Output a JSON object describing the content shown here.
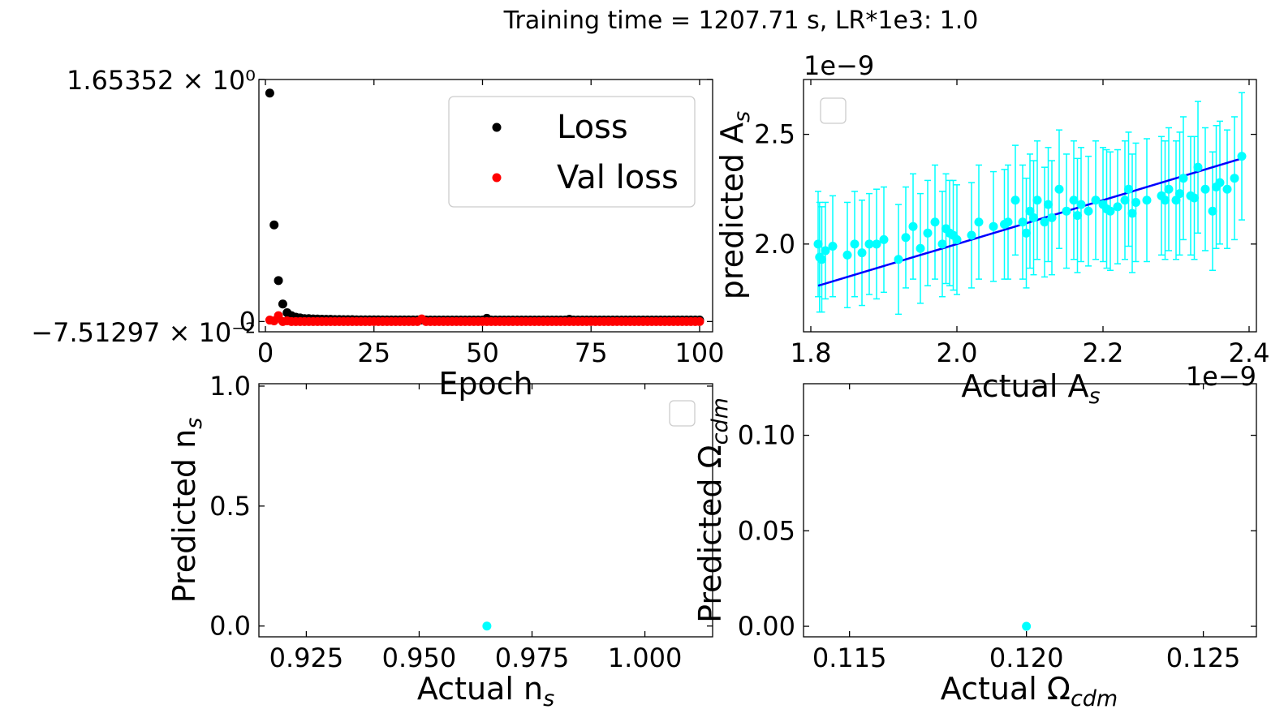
{
  "suptitle": "Training time = 1207.71 s,   LR*1e3:   1.0",
  "chart_data": [
    {
      "id": "loss",
      "type": "scatter",
      "xlabel": "Epoch",
      "ylabel": "",
      "xlim": [
        -1.5,
        103
      ],
      "ylim": [
        -0.07,
        1.653
      ],
      "xticks": [
        0,
        25,
        50,
        75,
        100
      ],
      "xtick_labels": [
        "0",
        "25",
        "50",
        "75",
        "100"
      ],
      "ytick_values": [
        1.65352,
        0
      ],
      "ytick_labels": [
        "1.65352 × 10⁰",
        "0"
      ],
      "ytick_extra_label": "−7.51297 × 10⁻²",
      "legend": "top-right",
      "series": [
        {
          "name": "Loss",
          "color": "#000000",
          "x": [
            1,
            2,
            3,
            4,
            5,
            6,
            7,
            8,
            9,
            10,
            11,
            12,
            13,
            14,
            15,
            16,
            17,
            18,
            19,
            20,
            21,
            22,
            23,
            24,
            25,
            26,
            27,
            28,
            29,
            30,
            31,
            32,
            33,
            34,
            35,
            36,
            37,
            38,
            39,
            40,
            41,
            42,
            43,
            44,
            45,
            46,
            47,
            48,
            49,
            50,
            51,
            52,
            53,
            54,
            55,
            56,
            57,
            58,
            59,
            60,
            61,
            62,
            63,
            64,
            65,
            66,
            67,
            68,
            69,
            70,
            71,
            72,
            73,
            74,
            75,
            76,
            77,
            78,
            79,
            80,
            81,
            82,
            83,
            84,
            85,
            86,
            87,
            88,
            89,
            90,
            91,
            92,
            93,
            94,
            95,
            96,
            97,
            98,
            99,
            100
          ],
          "y": [
            1.56,
            0.66,
            0.28,
            0.12,
            0.06,
            0.04,
            0.03,
            0.025,
            0.02,
            0.02,
            0.018,
            0.017,
            0.016,
            0.015,
            0.015,
            0.014,
            0.014,
            0.013,
            0.013,
            0.013,
            0.012,
            0.012,
            0.012,
            0.012,
            0.012,
            0.012,
            0.011,
            0.011,
            0.011,
            0.011,
            0.011,
            0.011,
            0.011,
            0.011,
            0.011,
            0.011,
            0.01,
            0.01,
            0.01,
            0.01,
            0.01,
            0.01,
            0.01,
            0.01,
            0.01,
            0.01,
            0.01,
            0.01,
            0.01,
            0.01,
            0.022,
            0.01,
            0.01,
            0.01,
            0.01,
            0.01,
            0.01,
            0.01,
            0.01,
            0.01,
            0.01,
            0.01,
            0.01,
            0.01,
            0.01,
            0.01,
            0.01,
            0.01,
            0.01,
            0.015,
            0.01,
            0.01,
            0.01,
            0.01,
            0.01,
            0.01,
            0.01,
            0.01,
            0.01,
            0.01,
            0.01,
            0.01,
            0.01,
            0.01,
            0.01,
            0.01,
            0.01,
            0.01,
            0.01,
            0.01,
            0.01,
            0.01,
            0.01,
            0.01,
            0.01,
            0.01,
            0.01,
            0.01,
            0.01,
            0.01
          ]
        },
        {
          "name": "Val loss",
          "color": "#ff0000",
          "x": [
            1,
            2,
            3,
            4,
            5,
            6,
            7,
            8,
            9,
            10,
            11,
            12,
            13,
            14,
            15,
            16,
            17,
            18,
            19,
            20,
            21,
            22,
            23,
            24,
            25,
            26,
            27,
            28,
            29,
            30,
            31,
            32,
            33,
            34,
            35,
            36,
            37,
            38,
            39,
            40,
            41,
            42,
            43,
            44,
            45,
            46,
            47,
            48,
            49,
            50,
            51,
            52,
            53,
            54,
            55,
            56,
            57,
            58,
            59,
            60,
            61,
            62,
            63,
            64,
            65,
            66,
            67,
            68,
            69,
            70,
            71,
            72,
            73,
            74,
            75,
            76,
            77,
            78,
            79,
            80,
            81,
            82,
            83,
            84,
            85,
            86,
            87,
            88,
            89,
            90,
            91,
            92,
            93,
            94,
            95,
            96,
            97,
            98,
            99,
            100
          ],
          "y": [
            0.01,
            0.005,
            0.04,
            0.0,
            0.005,
            0.0,
            0.0,
            0.0,
            0.0,
            0.0,
            0.0,
            0.0,
            0.0,
            0.0,
            0.0,
            0.0,
            0.0,
            0.0,
            0.0,
            0.0,
            0.0,
            0.0,
            0.0,
            0.0,
            0.0,
            0.0,
            0.0,
            0.0,
            0.0,
            0.0,
            0.0,
            0.0,
            0.0,
            0.0,
            0.0,
            0.018,
            0.0,
            0.0,
            0.0,
            0.0,
            0.0,
            0.0,
            0.0,
            0.0,
            0.0,
            0.0,
            0.0,
            0.0,
            0.0,
            0.0,
            0.0,
            0.0,
            0.0,
            0.0,
            0.0,
            0.0,
            0.0,
            0.0,
            0.0,
            0.0,
            0.0,
            0.0,
            0.0,
            0.0,
            0.0,
            0.0,
            0.0,
            0.0,
            0.0,
            0.0,
            0.0,
            0.0,
            0.0,
            0.0,
            0.0,
            0.0,
            0.0,
            0.0,
            0.0,
            0.0,
            0.0,
            0.0,
            0.0,
            0.0,
            0.0,
            0.0,
            0.0,
            0.0,
            0.0,
            0.0,
            0.0,
            0.0,
            0.0,
            0.0,
            0.0,
            0.0,
            0.0,
            0.0,
            0.0,
            0.0
          ]
        }
      ]
    },
    {
      "id": "As",
      "type": "scatter",
      "xlabel": "Actual A",
      "xlabel_sub": "s",
      "ylabel": "predicted A",
      "ylabel_sub": "s",
      "x_offset_label": "1e−9",
      "y_offset_label": "1e−9",
      "xlim": [
        1.79,
        2.41
      ],
      "ylim": [
        1.6,
        2.75
      ],
      "xticks": [
        1.8,
        2.0,
        2.2,
        2.4
      ],
      "xtick_labels": [
        "1.8",
        "2.0",
        "2.2",
        "2.4"
      ],
      "yticks": [
        2.0,
        2.5
      ],
      "ytick_labels": [
        "2.0",
        "2.5"
      ],
      "legend": "top-left",
      "point_color": "#00ffff",
      "line_color": "#0000ff",
      "fit_line": {
        "x": [
          1.81,
          2.39
        ],
        "y": [
          1.81,
          2.39
        ]
      },
      "x": [
        1.81,
        1.812,
        1.815,
        1.82,
        1.83,
        1.85,
        1.87,
        1.88,
        1.89,
        1.9,
        1.92,
        1.93,
        1.94,
        1.95,
        1.96,
        1.97,
        1.98,
        1.985,
        1.99,
        2.0,
        2.02,
        2.03,
        2.05,
        2.07,
        2.08,
        2.09,
        2.095,
        2.1,
        2.11,
        2.12,
        2.13,
        2.14,
        2.15,
        2.16,
        2.17,
        2.18,
        2.19,
        2.2,
        2.21,
        2.22,
        2.23,
        2.235,
        2.24,
        2.26,
        2.28,
        2.29,
        2.3,
        2.31,
        2.32,
        2.33,
        2.34,
        2.35,
        2.36,
        2.37,
        2.38,
        2.39,
        1.86,
        1.995,
        2.065,
        2.105,
        2.125,
        2.165,
        2.205,
        2.245,
        2.285,
        2.305,
        2.325,
        2.355
      ],
      "y": [
        2.0,
        1.94,
        1.93,
        1.97,
        1.99,
        1.95,
        1.96,
        2.0,
        2.0,
        2.02,
        1.93,
        2.03,
        2.08,
        1.98,
        2.05,
        2.1,
        2.0,
        2.07,
        2.05,
        2.02,
        2.04,
        2.1,
        2.08,
        2.1,
        2.2,
        2.1,
        2.05,
        2.15,
        2.2,
        2.1,
        2.12,
        2.25,
        2.15,
        2.2,
        2.18,
        2.15,
        2.2,
        2.18,
        2.15,
        2.17,
        2.2,
        2.25,
        2.14,
        2.2,
        2.22,
        2.25,
        2.2,
        2.3,
        2.22,
        2.35,
        2.25,
        2.15,
        2.28,
        2.25,
        2.3,
        2.4,
        2.0,
        2.04,
        2.09,
        2.12,
        2.18,
        2.13,
        2.16,
        2.19,
        2.2,
        2.23,
        2.21,
        2.26
      ],
      "err": [
        0.24,
        0.25,
        0.24,
        0.22,
        0.23,
        0.24,
        0.24,
        0.23,
        0.25,
        0.24,
        0.25,
        0.23,
        0.24,
        0.25,
        0.24,
        0.26,
        0.24,
        0.25,
        0.24,
        0.25,
        0.24,
        0.26,
        0.25,
        0.26,
        0.25,
        0.26,
        0.25,
        0.26,
        0.27,
        0.25,
        0.26,
        0.27,
        0.26,
        0.27,
        0.26,
        0.25,
        0.27,
        0.26,
        0.27,
        0.26,
        0.27,
        0.26,
        0.27,
        0.28,
        0.27,
        0.28,
        0.27,
        0.28,
        0.27,
        0.3,
        0.28,
        0.27,
        0.28,
        0.27,
        0.28,
        0.29,
        0.24,
        0.25,
        0.25,
        0.26,
        0.26,
        0.26,
        0.27,
        0.27,
        0.27,
        0.28,
        0.28,
        0.28
      ]
    },
    {
      "id": "ns",
      "type": "scatter",
      "xlabel": "Actual n",
      "xlabel_sub": "s",
      "ylabel": "Predicted n",
      "ylabel_sub": "s",
      "xlim": [
        0.9145,
        1.015
      ],
      "ylim": [
        -0.045,
        1.01
      ],
      "xticks": [
        0.925,
        0.95,
        0.975,
        1.0
      ],
      "xtick_labels": [
        "0.925",
        "0.950",
        "0.975",
        "1.000"
      ],
      "yticks": [
        0.0,
        0.5,
        1.0
      ],
      "ytick_labels": [
        "0.0",
        "0.5",
        "1.0"
      ],
      "legend": "top-right",
      "point_color": "#00ffff",
      "x": [
        0.965
      ],
      "y": [
        0.0
      ]
    },
    {
      "id": "ocdm",
      "type": "scatter",
      "xlabel": "Actual Ω",
      "xlabel_sub": "cdm",
      "ylabel": "Predicted Ω",
      "ylabel_sub": "cdm",
      "xlim": [
        0.1137,
        0.1265
      ],
      "ylim": [
        -0.0055,
        0.127
      ],
      "xticks": [
        0.115,
        0.12,
        0.125
      ],
      "xtick_labels": [
        "0.115",
        "0.120",
        "0.125"
      ],
      "yticks": [
        0.0,
        0.05,
        0.1
      ],
      "ytick_labels": [
        "0.00",
        "0.05",
        "0.10"
      ],
      "point_color": "#00ffff",
      "x": [
        0.12
      ],
      "y": [
        0.0
      ]
    }
  ]
}
